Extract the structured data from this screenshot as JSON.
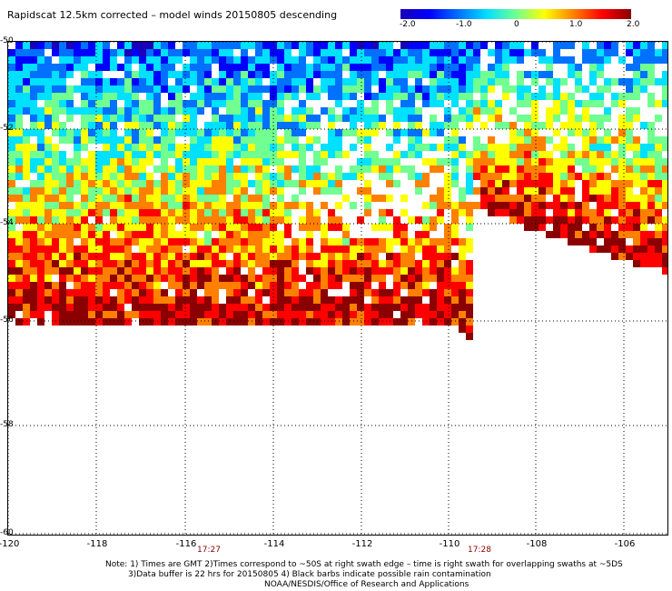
{
  "title": "Rapidscat 12.5km corrected – model winds 20150805 descending",
  "colorbar": {
    "ticks": [
      "-2.0",
      "-1.0",
      "0",
      "1.0",
      "2.0"
    ],
    "colors": [
      "#1a00b8",
      "#0000ff",
      "#0070ff",
      "#00e0ff",
      "#70ff90",
      "#ffff00",
      "#ff8000",
      "#ff0000",
      "#8b0000"
    ]
  },
  "map": {
    "x_labels": [
      "-120",
      "-118",
      "-116",
      "-114",
      "-112",
      "-110",
      "-108",
      "-106"
    ],
    "y_labels": [
      "-50",
      "-52",
      "-54",
      "-56",
      "-58",
      "-60"
    ],
    "times": [
      "17:27",
      "17:28"
    ],
    "grid": "dotted",
    "fill_note": "wind difference swath field"
  },
  "notes": {
    "line1": "Note: 1) Times are GMT 2)Times correspond to ~50S at right swath edge – time is right swath for overlapping swaths at ~5DS",
    "line2": "3)Data buffer is 22 hrs for 20150805 4) Black barbs indicate possible rain contamination",
    "line3": "NOAA/NESDIS/Office of Research and Applications"
  }
}
